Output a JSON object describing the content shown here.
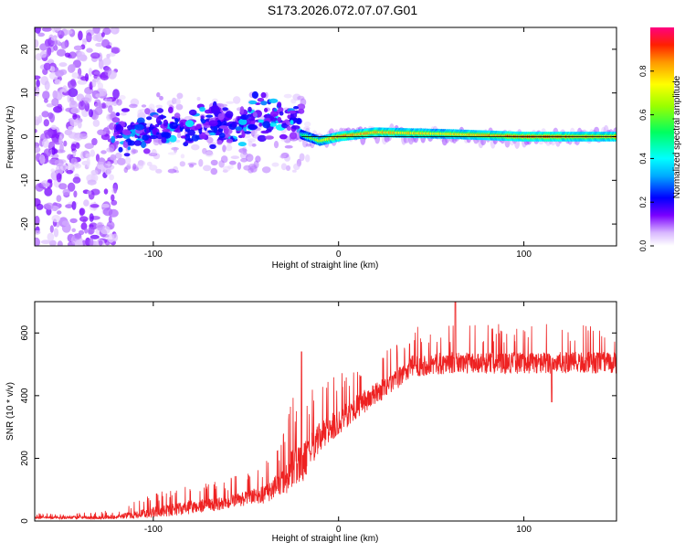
{
  "title": "S173.2026.072.07.07.G01",
  "colors": {
    "axis": "#000000",
    "snr_line": "#ee2222",
    "zero_line": "#000000"
  },
  "chart_data": [
    {
      "type": "heatmap",
      "name": "spectrogram",
      "xlabel": "Height of straight line (km)",
      "ylabel": "Frequency (Hz)",
      "xlim": [
        -164,
        150
      ],
      "ylim": [
        -25,
        25
      ],
      "xticks": [
        -100,
        0,
        100
      ],
      "xtick_labels": [
        "-100",
        "0",
        "100"
      ],
      "yticks": [
        -20,
        -10,
        0,
        10,
        20
      ],
      "ytick_labels": [
        "-20",
        "-10",
        "0",
        "10",
        "20"
      ],
      "value_range": [
        0,
        1
      ],
      "description_of_values": "Normalized amplitude; scattered low-amplitude noise below -120 km, clustered moderate features from -120 to -20 km near 0 to 5 Hz, narrow strong band at 0 Hz from -20 to 150 km",
      "ridge": [
        {
          "x": -20,
          "f": 0.5,
          "amp": 0.5
        },
        {
          "x": -10,
          "f": -1.0,
          "amp": 0.7
        },
        {
          "x": 0,
          "f": 0.0,
          "amp": 0.85
        },
        {
          "x": 20,
          "f": 1.0,
          "amp": 0.8
        },
        {
          "x": 60,
          "f": 0.6,
          "amp": 0.75
        },
        {
          "x": 100,
          "f": 0.0,
          "amp": 0.9
        },
        {
          "x": 150,
          "f": 0.0,
          "amp": 0.8
        }
      ],
      "colorbar": {
        "label": "Normalized spectral amplitude",
        "ticks": [
          0.0,
          0.2,
          0.4,
          0.6,
          0.8
        ],
        "tick_labels": [
          "0.0",
          "0.2",
          "0.4",
          "0.6",
          "0.8"
        ]
      }
    },
    {
      "type": "line",
      "name": "snr",
      "xlabel": "Height of straight line (km)",
      "ylabel": "SNR (10 * v/v)",
      "xlim": [
        -164,
        150
      ],
      "ylim": [
        0,
        700
      ],
      "xticks": [
        -100,
        0,
        100
      ],
      "xtick_labels": [
        "-100",
        "0",
        "100"
      ],
      "yticks": [
        0,
        200,
        400,
        600
      ],
      "ytick_labels": [
        "0",
        "200",
        "400",
        "600"
      ],
      "envelope": {
        "x": [
          -164,
          -130,
          -120,
          -100,
          -80,
          -60,
          -40,
          -30,
          -25,
          -20,
          -15,
          -10,
          0,
          10,
          20,
          30,
          40,
          60,
          80,
          100,
          120,
          150
        ],
        "baseline": [
          10,
          10,
          12,
          25,
          40,
          55,
          80,
          120,
          150,
          170,
          220,
          260,
          310,
          360,
          400,
          440,
          490,
          500,
          500,
          500,
          500,
          500
        ],
        "spread": [
          12,
          15,
          20,
          50,
          60,
          60,
          80,
          120,
          200,
          180,
          150,
          140,
          120,
          110,
          100,
          90,
          100,
          100,
          100,
          100,
          100,
          100
        ]
      },
      "spikes": [
        {
          "x": -20,
          "y": 540
        },
        {
          "x": 63,
          "y": 700
        },
        {
          "x": 115,
          "y": 380
        }
      ]
    }
  ]
}
